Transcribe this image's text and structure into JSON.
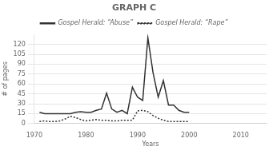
{
  "chart_data": {
    "type": "line",
    "title": "GRAPH C",
    "xlabel": "Years",
    "ylabel": "# of pages",
    "x": [
      1971,
      1972,
      1973,
      1974,
      1975,
      1976,
      1977,
      1978,
      1979,
      1980,
      1981,
      1982,
      1983,
      1984,
      1985,
      1986,
      1987,
      1988,
      1989,
      1990,
      1991,
      1992,
      1993,
      1994,
      1995,
      1996,
      1997,
      1998,
      1999,
      2000
    ],
    "series": [
      {
        "name": "Gospel Herald: “Abuse”",
        "color": "#333333",
        "line_style": "solid",
        "values": [
          17,
          15,
          15,
          15,
          15,
          15,
          15,
          17,
          18,
          17,
          17,
          20,
          22,
          46,
          22,
          17,
          20,
          15,
          55,
          40,
          35,
          130,
          77,
          40,
          65,
          28,
          28,
          20,
          17,
          17
        ]
      },
      {
        "name": "Gospel Herald: “Rape”",
        "color": "#333333",
        "line_style": "dotted",
        "values": [
          3,
          4,
          3,
          3,
          4,
          7,
          11,
          9,
          6,
          4,
          5,
          6,
          5,
          5,
          4,
          4,
          5,
          5,
          5,
          19,
          20,
          18,
          12,
          8,
          5,
          3,
          3,
          3,
          3,
          3
        ]
      }
    ],
    "xlim": [
      1970,
      2015
    ],
    "ylim": [
      0,
      135
    ],
    "xticks": [
      1970,
      1980,
      1990,
      2000,
      2010
    ],
    "yticks": [
      0,
      15,
      30,
      45,
      60,
      75,
      90,
      105,
      120
    ],
    "grid": true,
    "legend": "top"
  }
}
